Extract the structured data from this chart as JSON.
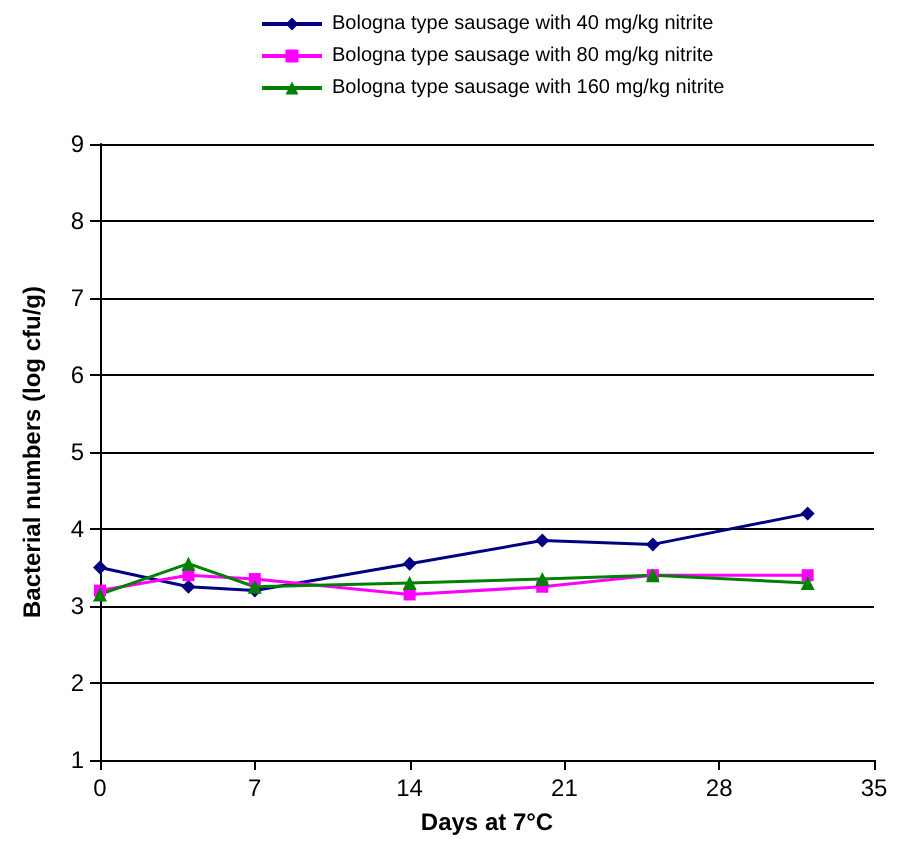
{
  "chart_data": {
    "type": "line",
    "xlabel": "Days at 7°C",
    "ylabel": "Bacterial numbers (log cfu/g)",
    "x": [
      0,
      4,
      7,
      14,
      20,
      25,
      32
    ],
    "series": [
      {
        "name": "Bologna type sausage with 40 mg/kg nitrite",
        "color": "#000080",
        "marker": "diamond",
        "values": [
          3.5,
          3.25,
          3.2,
          3.55,
          3.85,
          3.8,
          4.2
        ]
      },
      {
        "name": "Bologna type sausage with 80 mg/kg nitrite",
        "color": "#ff00ff",
        "marker": "square",
        "values": [
          3.2,
          3.4,
          3.35,
          3.15,
          3.25,
          3.4,
          3.4
        ]
      },
      {
        "name": "Bologna type sausage with 160 mg/kg nitrite",
        "color": "#008000",
        "marker": "triangle",
        "values": [
          3.15,
          3.55,
          3.25,
          3.3,
          3.35,
          3.4,
          3.3
        ]
      }
    ],
    "xlim": [
      0,
      35
    ],
    "xticks": [
      0,
      7,
      14,
      21,
      28,
      35
    ],
    "ylim": [
      1,
      9
    ],
    "yticks": [
      1,
      2,
      3,
      4,
      5,
      6,
      7,
      8,
      9
    ],
    "grid": "y",
    "legend": "top"
  }
}
